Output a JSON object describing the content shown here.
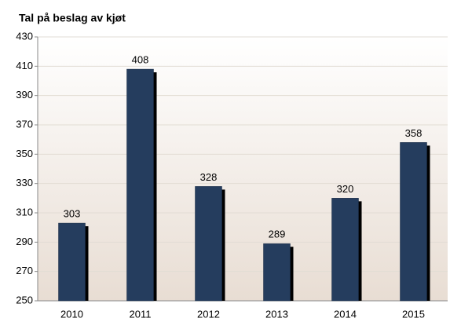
{
  "chart_data": {
    "type": "bar",
    "title": "Tal på beslag av kjøt",
    "categories": [
      "2010",
      "2011",
      "2012",
      "2013",
      "2014",
      "2015"
    ],
    "values": [
      303,
      408,
      328,
      289,
      320,
      358
    ],
    "color": "#253d5e",
    "ylim": [
      250,
      430
    ],
    "yticks": [
      250,
      270,
      290,
      310,
      330,
      350,
      370,
      390,
      410,
      430
    ],
    "grid": true
  }
}
